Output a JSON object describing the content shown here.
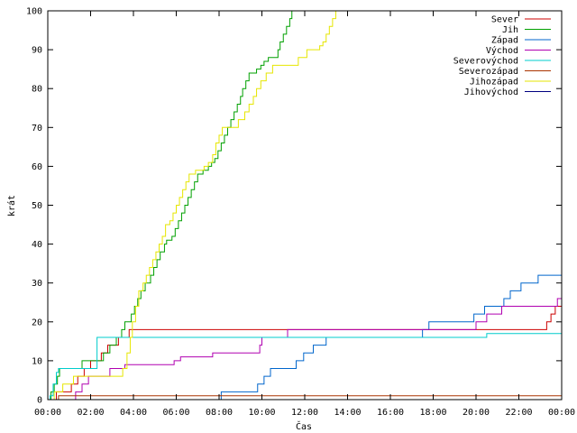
{
  "chart_data": {
    "type": "line",
    "title": "",
    "xlabel": "Čas",
    "ylabel": "krát",
    "xlim": [
      0,
      24
    ],
    "ylim": [
      0,
      100
    ],
    "x_ticks": [
      {
        "v": 0,
        "label": "00:00"
      },
      {
        "v": 2,
        "label": "02:00"
      },
      {
        "v": 4,
        "label": "04:00"
      },
      {
        "v": 6,
        "label": "06:00"
      },
      {
        "v": 8,
        "label": "08:00"
      },
      {
        "v": 10,
        "label": "10:00"
      },
      {
        "v": 12,
        "label": "12:00"
      },
      {
        "v": 14,
        "label": "14:00"
      },
      {
        "v": 16,
        "label": "16:00"
      },
      {
        "v": 18,
        "label": "18:00"
      },
      {
        "v": 20,
        "label": "20:00"
      },
      {
        "v": 22,
        "label": "22:00"
      },
      {
        "v": 24,
        "label": "00:00"
      }
    ],
    "y_ticks": [
      {
        "v": 0,
        "label": "0"
      },
      {
        "v": 10,
        "label": "10"
      },
      {
        "v": 20,
        "label": "20"
      },
      {
        "v": 30,
        "label": "30"
      },
      {
        "v": 40,
        "label": "40"
      },
      {
        "v": 50,
        "label": "50"
      },
      {
        "v": 60,
        "label": "60"
      },
      {
        "v": 70,
        "label": "70"
      },
      {
        "v": 80,
        "label": "80"
      },
      {
        "v": 90,
        "label": "90"
      },
      {
        "v": 100,
        "label": "100"
      }
    ],
    "grid": false,
    "legend_position": "top-right",
    "series": [
      {
        "name": "Sever",
        "color": "#cc0000",
        "steps": [
          [
            0.4,
            2
          ],
          [
            1.1,
            4
          ],
          [
            1.4,
            6
          ],
          [
            1.7,
            8
          ],
          [
            2.0,
            10
          ],
          [
            2.5,
            12
          ],
          [
            2.8,
            14
          ],
          [
            3.3,
            16
          ],
          [
            3.8,
            18
          ],
          [
            23.3,
            20
          ],
          [
            23.5,
            22
          ],
          [
            23.7,
            24
          ]
        ]
      },
      {
        "name": "Jih",
        "color": "#00a000",
        "steps": [
          [
            0.15,
            2
          ],
          [
            0.3,
            4
          ],
          [
            0.45,
            6
          ],
          [
            0.55,
            8
          ],
          [
            1.6,
            10
          ],
          [
            2.6,
            12
          ],
          [
            2.9,
            14
          ],
          [
            3.2,
            16
          ],
          [
            3.45,
            18
          ],
          [
            3.6,
            20
          ],
          [
            3.9,
            22
          ],
          [
            4.05,
            24
          ],
          [
            4.2,
            26
          ],
          [
            4.35,
            28
          ],
          [
            4.55,
            30
          ],
          [
            4.8,
            32
          ],
          [
            4.95,
            34
          ],
          [
            5.1,
            36
          ],
          [
            5.25,
            38
          ],
          [
            5.45,
            40
          ],
          [
            5.55,
            41
          ],
          [
            5.8,
            42
          ],
          [
            5.95,
            44
          ],
          [
            6.1,
            46
          ],
          [
            6.25,
            48
          ],
          [
            6.4,
            50
          ],
          [
            6.55,
            52
          ],
          [
            6.7,
            54
          ],
          [
            6.85,
            56
          ],
          [
            7.0,
            58
          ],
          [
            7.25,
            59
          ],
          [
            7.5,
            60
          ],
          [
            7.65,
            61
          ],
          [
            7.8,
            62
          ],
          [
            7.95,
            64
          ],
          [
            8.1,
            66
          ],
          [
            8.25,
            68
          ],
          [
            8.4,
            70
          ],
          [
            8.55,
            72
          ],
          [
            8.7,
            74
          ],
          [
            8.85,
            76
          ],
          [
            9.0,
            78
          ],
          [
            9.1,
            80
          ],
          [
            9.25,
            82
          ],
          [
            9.4,
            84
          ],
          [
            9.75,
            85
          ],
          [
            9.95,
            86
          ],
          [
            10.1,
            87
          ],
          [
            10.3,
            88
          ],
          [
            10.75,
            90
          ],
          [
            10.85,
            92
          ],
          [
            11.0,
            94
          ],
          [
            11.15,
            96
          ],
          [
            11.3,
            98
          ],
          [
            11.4,
            100
          ]
        ]
      },
      {
        "name": "Západ",
        "color": "#0066cc",
        "steps": [
          [
            8.1,
            2
          ],
          [
            9.8,
            4
          ],
          [
            10.1,
            6
          ],
          [
            10.4,
            8
          ],
          [
            11.6,
            10
          ],
          [
            11.95,
            12
          ],
          [
            12.4,
            14
          ],
          [
            13.0,
            16
          ],
          [
            17.5,
            18
          ],
          [
            17.8,
            20
          ],
          [
            19.9,
            22
          ],
          [
            20.4,
            24
          ],
          [
            21.3,
            26
          ],
          [
            21.6,
            28
          ],
          [
            22.1,
            30
          ],
          [
            22.9,
            32
          ]
        ]
      },
      {
        "name": "Východ",
        "color": "#b000b0",
        "steps": [
          [
            1.3,
            2
          ],
          [
            1.6,
            4
          ],
          [
            1.9,
            6
          ],
          [
            2.9,
            8
          ],
          [
            3.6,
            9
          ],
          [
            5.9,
            10
          ],
          [
            6.2,
            11
          ],
          [
            7.7,
            12
          ],
          [
            9.9,
            14
          ],
          [
            10.0,
            16
          ],
          [
            11.2,
            18
          ],
          [
            20.0,
            20
          ],
          [
            20.5,
            22
          ],
          [
            21.2,
            24
          ],
          [
            23.8,
            26
          ]
        ]
      },
      {
        "name": "Severovýchod",
        "color": "#00cccc",
        "steps": [
          [
            0.1,
            1
          ],
          [
            0.25,
            4
          ],
          [
            0.4,
            7
          ],
          [
            0.5,
            8
          ],
          [
            2.3,
            16
          ],
          [
            20.5,
            17
          ]
        ]
      },
      {
        "name": "Severozápad",
        "color": "#aa3300",
        "steps": [
          [
            0.5,
            1
          ]
        ]
      },
      {
        "name": "Jihozápad",
        "color": "#e6e600",
        "steps": [
          [
            0.3,
            2
          ],
          [
            0.7,
            4
          ],
          [
            1.2,
            6
          ],
          [
            3.5,
            8
          ],
          [
            3.7,
            12
          ],
          [
            3.85,
            16
          ],
          [
            3.95,
            20
          ],
          [
            4.1,
            24
          ],
          [
            4.25,
            28
          ],
          [
            4.45,
            30
          ],
          [
            4.6,
            32
          ],
          [
            4.75,
            34
          ],
          [
            4.9,
            36
          ],
          [
            5.05,
            38
          ],
          [
            5.2,
            40
          ],
          [
            5.35,
            42
          ],
          [
            5.5,
            45
          ],
          [
            5.7,
            46
          ],
          [
            5.85,
            48
          ],
          [
            6.0,
            50
          ],
          [
            6.15,
            52
          ],
          [
            6.3,
            54
          ],
          [
            6.45,
            56
          ],
          [
            6.6,
            58
          ],
          [
            6.9,
            59
          ],
          [
            7.3,
            60
          ],
          [
            7.5,
            61
          ],
          [
            7.7,
            63
          ],
          [
            7.85,
            66
          ],
          [
            8.0,
            68
          ],
          [
            8.15,
            70
          ],
          [
            8.9,
            72
          ],
          [
            9.2,
            74
          ],
          [
            9.4,
            76
          ],
          [
            9.6,
            78
          ],
          [
            9.75,
            80
          ],
          [
            9.95,
            82
          ],
          [
            10.2,
            84
          ],
          [
            10.5,
            86
          ],
          [
            11.7,
            88
          ],
          [
            12.1,
            90
          ],
          [
            12.7,
            91
          ],
          [
            12.85,
            92
          ],
          [
            13.0,
            94
          ],
          [
            13.15,
            96
          ],
          [
            13.3,
            98
          ],
          [
            13.45,
            100
          ]
        ]
      },
      {
        "name": "Jihovýchod",
        "color": "#000080",
        "steps": []
      }
    ]
  }
}
